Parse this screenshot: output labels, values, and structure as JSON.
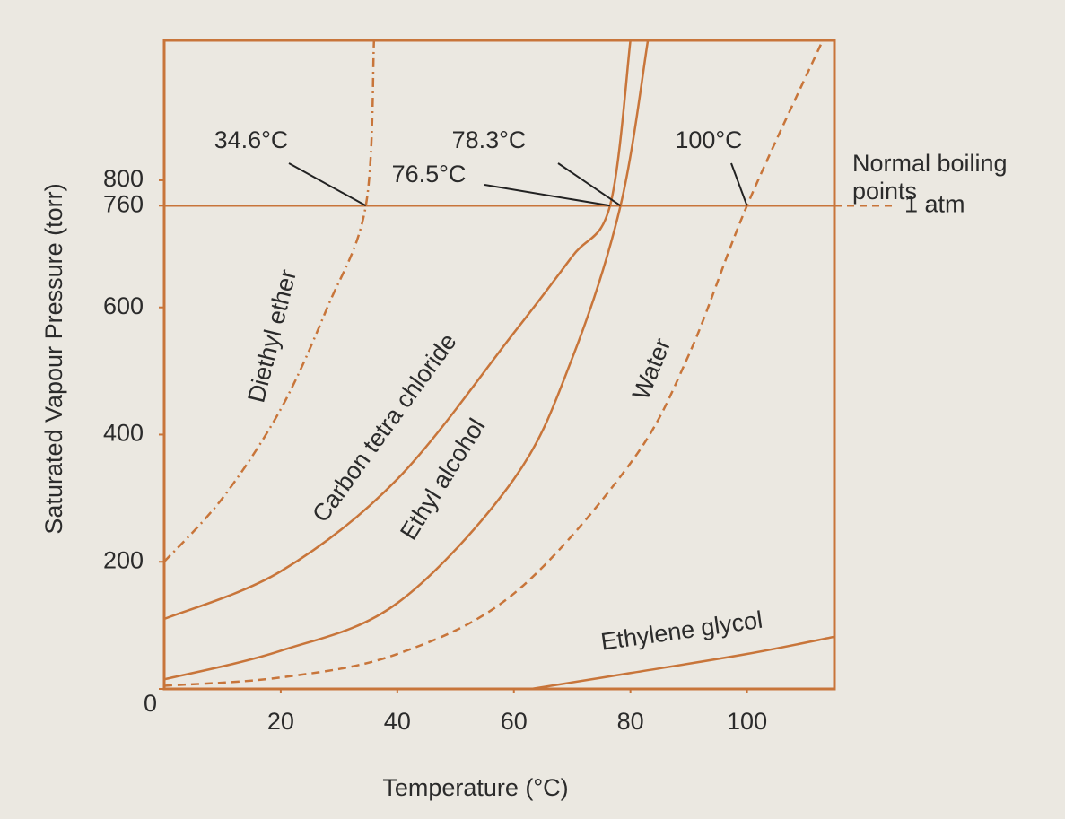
{
  "chart_data": {
    "type": "line",
    "xlabel": "Temperature (°C)",
    "ylabel": "Saturated Vapour Pressure (torr)",
    "xlim": [
      0,
      115
    ],
    "ylim": [
      0,
      1020
    ],
    "xticks": [
      20,
      40,
      60,
      80,
      100
    ],
    "yticks": [
      0,
      200,
      400,
      600,
      760,
      800
    ],
    "series": [
      {
        "name": "Diethyl ether",
        "color": "#c8753a",
        "style": "dashdot",
        "x": [
          0,
          10,
          20,
          28,
          34.6,
          36
        ],
        "values": [
          200,
          300,
          440,
          600,
          760,
          1020
        ]
      },
      {
        "name": "Carbon tetra chloride",
        "color": "#c8753a",
        "style": "solid",
        "x": [
          0,
          20,
          40,
          60,
          70,
          76.5,
          80
        ],
        "values": [
          110,
          185,
          330,
          560,
          680,
          760,
          1020
        ]
      },
      {
        "name": "Ethyl alcohol",
        "color": "#c8753a",
        "style": "solid",
        "x": [
          0,
          20,
          40,
          60,
          70,
          78.3,
          83
        ],
        "values": [
          15,
          60,
          135,
          330,
          520,
          760,
          1020
        ]
      },
      {
        "name": "Water",
        "color": "#c8753a",
        "style": "dashed",
        "x": [
          0,
          20,
          40,
          60,
          80,
          90,
          100,
          113
        ],
        "values": [
          5,
          18,
          55,
          150,
          355,
          525,
          760,
          1020
        ]
      },
      {
        "name": "Ethylene glycol",
        "color": "#c8753a",
        "style": "solid",
        "x": [
          63,
          80,
          100,
          115
        ],
        "values": [
          0,
          25,
          55,
          82
        ]
      }
    ],
    "reference_line": {
      "value": 760,
      "label": "1 atm"
    },
    "legend_title": [
      "Normal boiling",
      "points"
    ],
    "annotations": [
      {
        "text": "34.6°C",
        "x": 34.6,
        "y": 760
      },
      {
        "text": "76.5°C",
        "x": 76.5,
        "y": 760
      },
      {
        "text": "78.3°C",
        "x": 78.3,
        "y": 760
      },
      {
        "text": "100°C",
        "x": 100,
        "y": 760
      }
    ]
  }
}
